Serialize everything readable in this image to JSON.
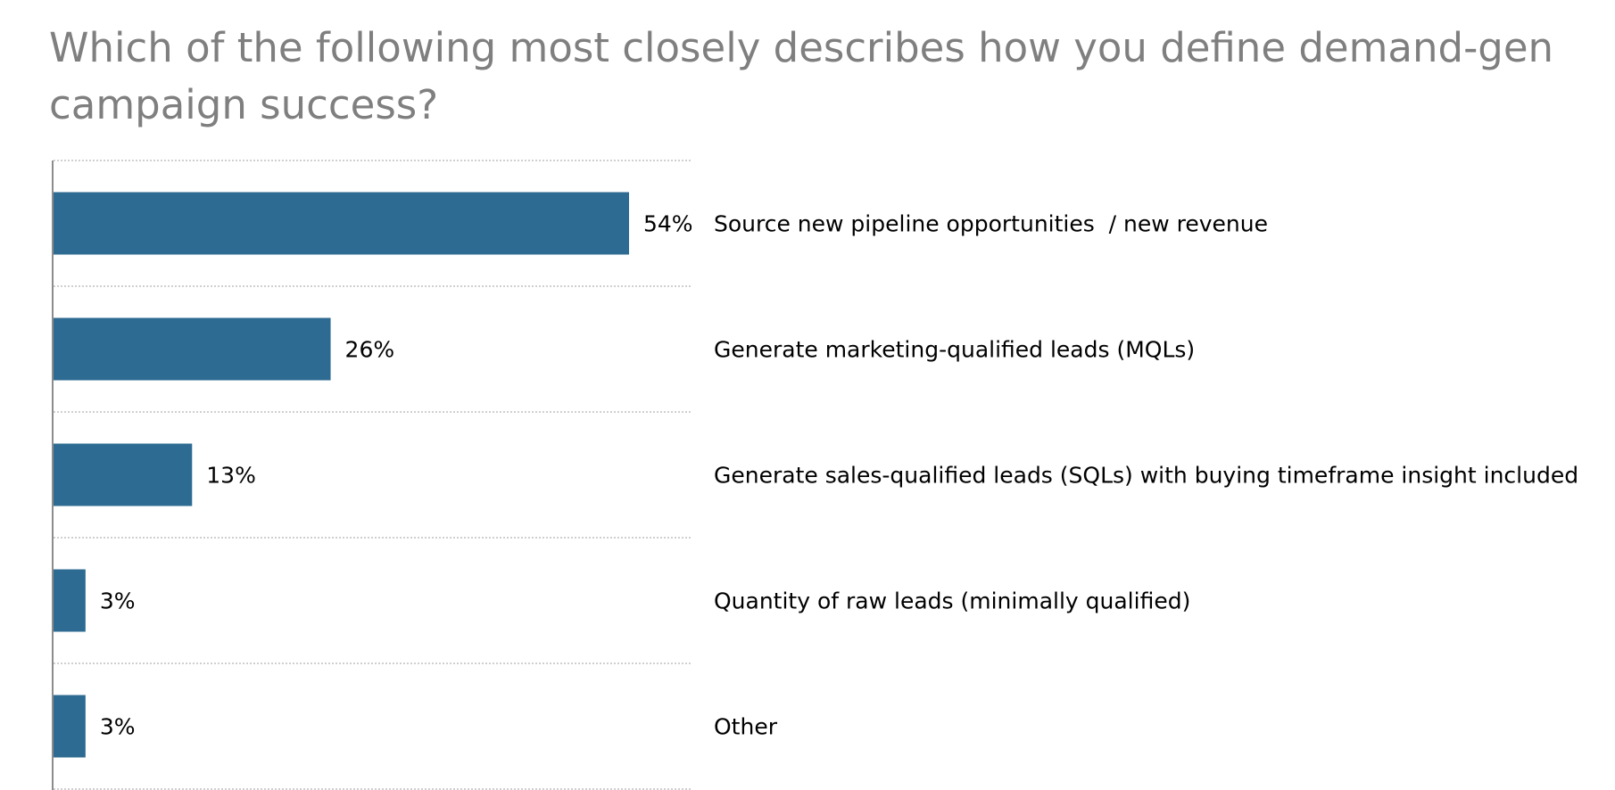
{
  "chart_data": {
    "type": "bar",
    "orientation": "horizontal",
    "title": "Which of the following most closely describes how you define demand-gen campaign success?",
    "categories": [
      "Source new pipeline opportunities  / new revenue",
      "Generate marketing-qualified leads (MQLs)",
      "Generate sales-qualified leads (SQLs) with buying timeframe insight included",
      "Quantity of raw leads (minimally qualified)",
      "Other"
    ],
    "values": [
      54,
      26,
      13,
      3,
      3
    ],
    "value_labels": [
      "54%",
      "26%",
      "13%",
      "3%",
      "3%"
    ],
    "unit": "%",
    "xlim": [
      0,
      60
    ],
    "bar_color": "#2e6b92",
    "gridlines": true,
    "gridline_style": "dotted",
    "legend": "none"
  }
}
